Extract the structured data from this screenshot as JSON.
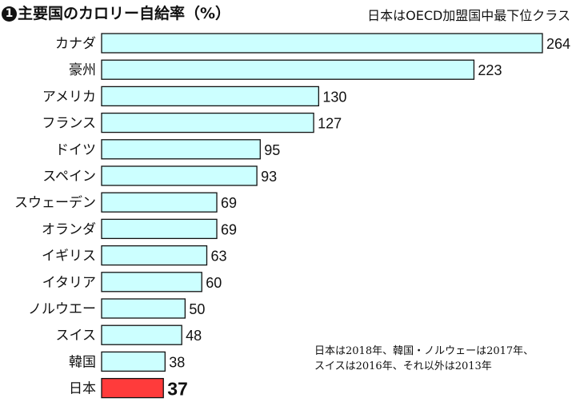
{
  "title": {
    "badge": "1",
    "text": "主要国のカロリー自給率（%）"
  },
  "subtitle": "日本はOECD加盟国中最下位クラス",
  "note": {
    "line1": "日本は2018年、韓国・ノルウェーは2017年、",
    "line2": "スイスは2016年、それ以外は2013年"
  },
  "colors": {
    "bar_fill": "#ccffff",
    "highlight_fill": "#ff3b3b",
    "bar_stroke": "#111111"
  },
  "chart_data": {
    "type": "bar",
    "orientation": "horizontal",
    "categories": [
      "カナダ",
      "豪州",
      "アメリカ",
      "フランス",
      "ドイツ",
      "スペイン",
      "スウェーデン",
      "オランダ",
      "イギリス",
      "イタリア",
      "ノルウエー",
      "スイス",
      "韓国",
      "日本"
    ],
    "values": [
      264,
      223,
      130,
      127,
      95,
      93,
      69,
      69,
      63,
      60,
      50,
      48,
      38,
      37
    ],
    "value_labels": [
      "264",
      "223",
      "130",
      "127",
      "95",
      "93",
      "69",
      "69",
      "63",
      "60",
      "50",
      "48",
      "38",
      "37"
    ],
    "highlight_category": "日本",
    "xlim": [
      0,
      264
    ],
    "grid": false,
    "legend": "none"
  }
}
